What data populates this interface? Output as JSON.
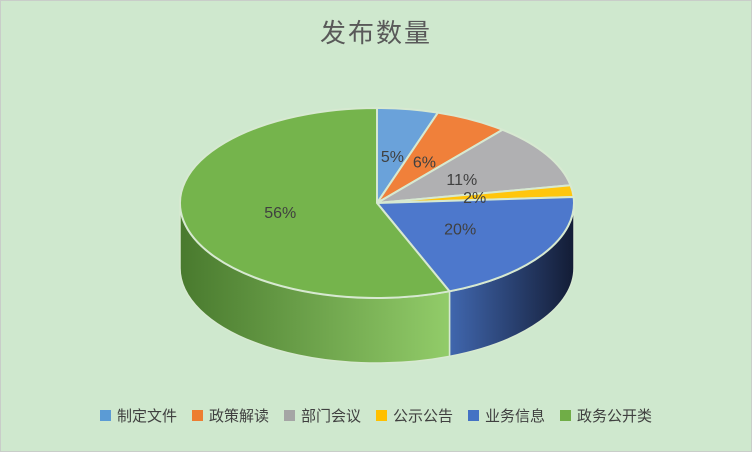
{
  "chart_data": {
    "type": "pie",
    "style": "3d-exploded-none",
    "title": "发布数量",
    "legend_position": "bottom",
    "data_labels": "percent-inside",
    "background_color": "#cfe8ce",
    "border_color": "#c9cdc9",
    "title_color": "#595959",
    "label_color": "#404040",
    "slice_border_color": "#d7e9d1",
    "categories": [
      "制定文件",
      "政策解读",
      "部门会议",
      "公示公告",
      "业务信息",
      "政务公开类"
    ],
    "values": [
      5,
      6,
      11,
      2,
      20,
      56
    ],
    "segments": [
      {
        "label": "制定文件",
        "value": 5,
        "data_label": "5%",
        "color": "#5B9BD5",
        "top_color": "#6aa2da"
      },
      {
        "label": "政策解读",
        "value": 6,
        "data_label": "6%",
        "color": "#ED7D31",
        "top_color": "#f0803a"
      },
      {
        "label": "部门会议",
        "value": 11,
        "data_label": "11%",
        "color": "#A5A5A5",
        "top_color": "#b0b0b2"
      },
      {
        "label": "公示公告",
        "value": 2,
        "data_label": "2%",
        "color": "#FFC000",
        "top_color": "#ffc60d"
      },
      {
        "label": "业务信息",
        "value": 20,
        "data_label": "20%",
        "color": "#4472C4",
        "top_color": "#4d78cc",
        "side_gradient": [
          "#4066ad",
          "#131c35"
        ]
      },
      {
        "label": "政务公开类",
        "value": 56,
        "data_label": "56%",
        "color": "#70AD47",
        "top_color": "#75b44c",
        "side_gradient": [
          "#497a2e",
          "#92cc69"
        ]
      }
    ]
  }
}
